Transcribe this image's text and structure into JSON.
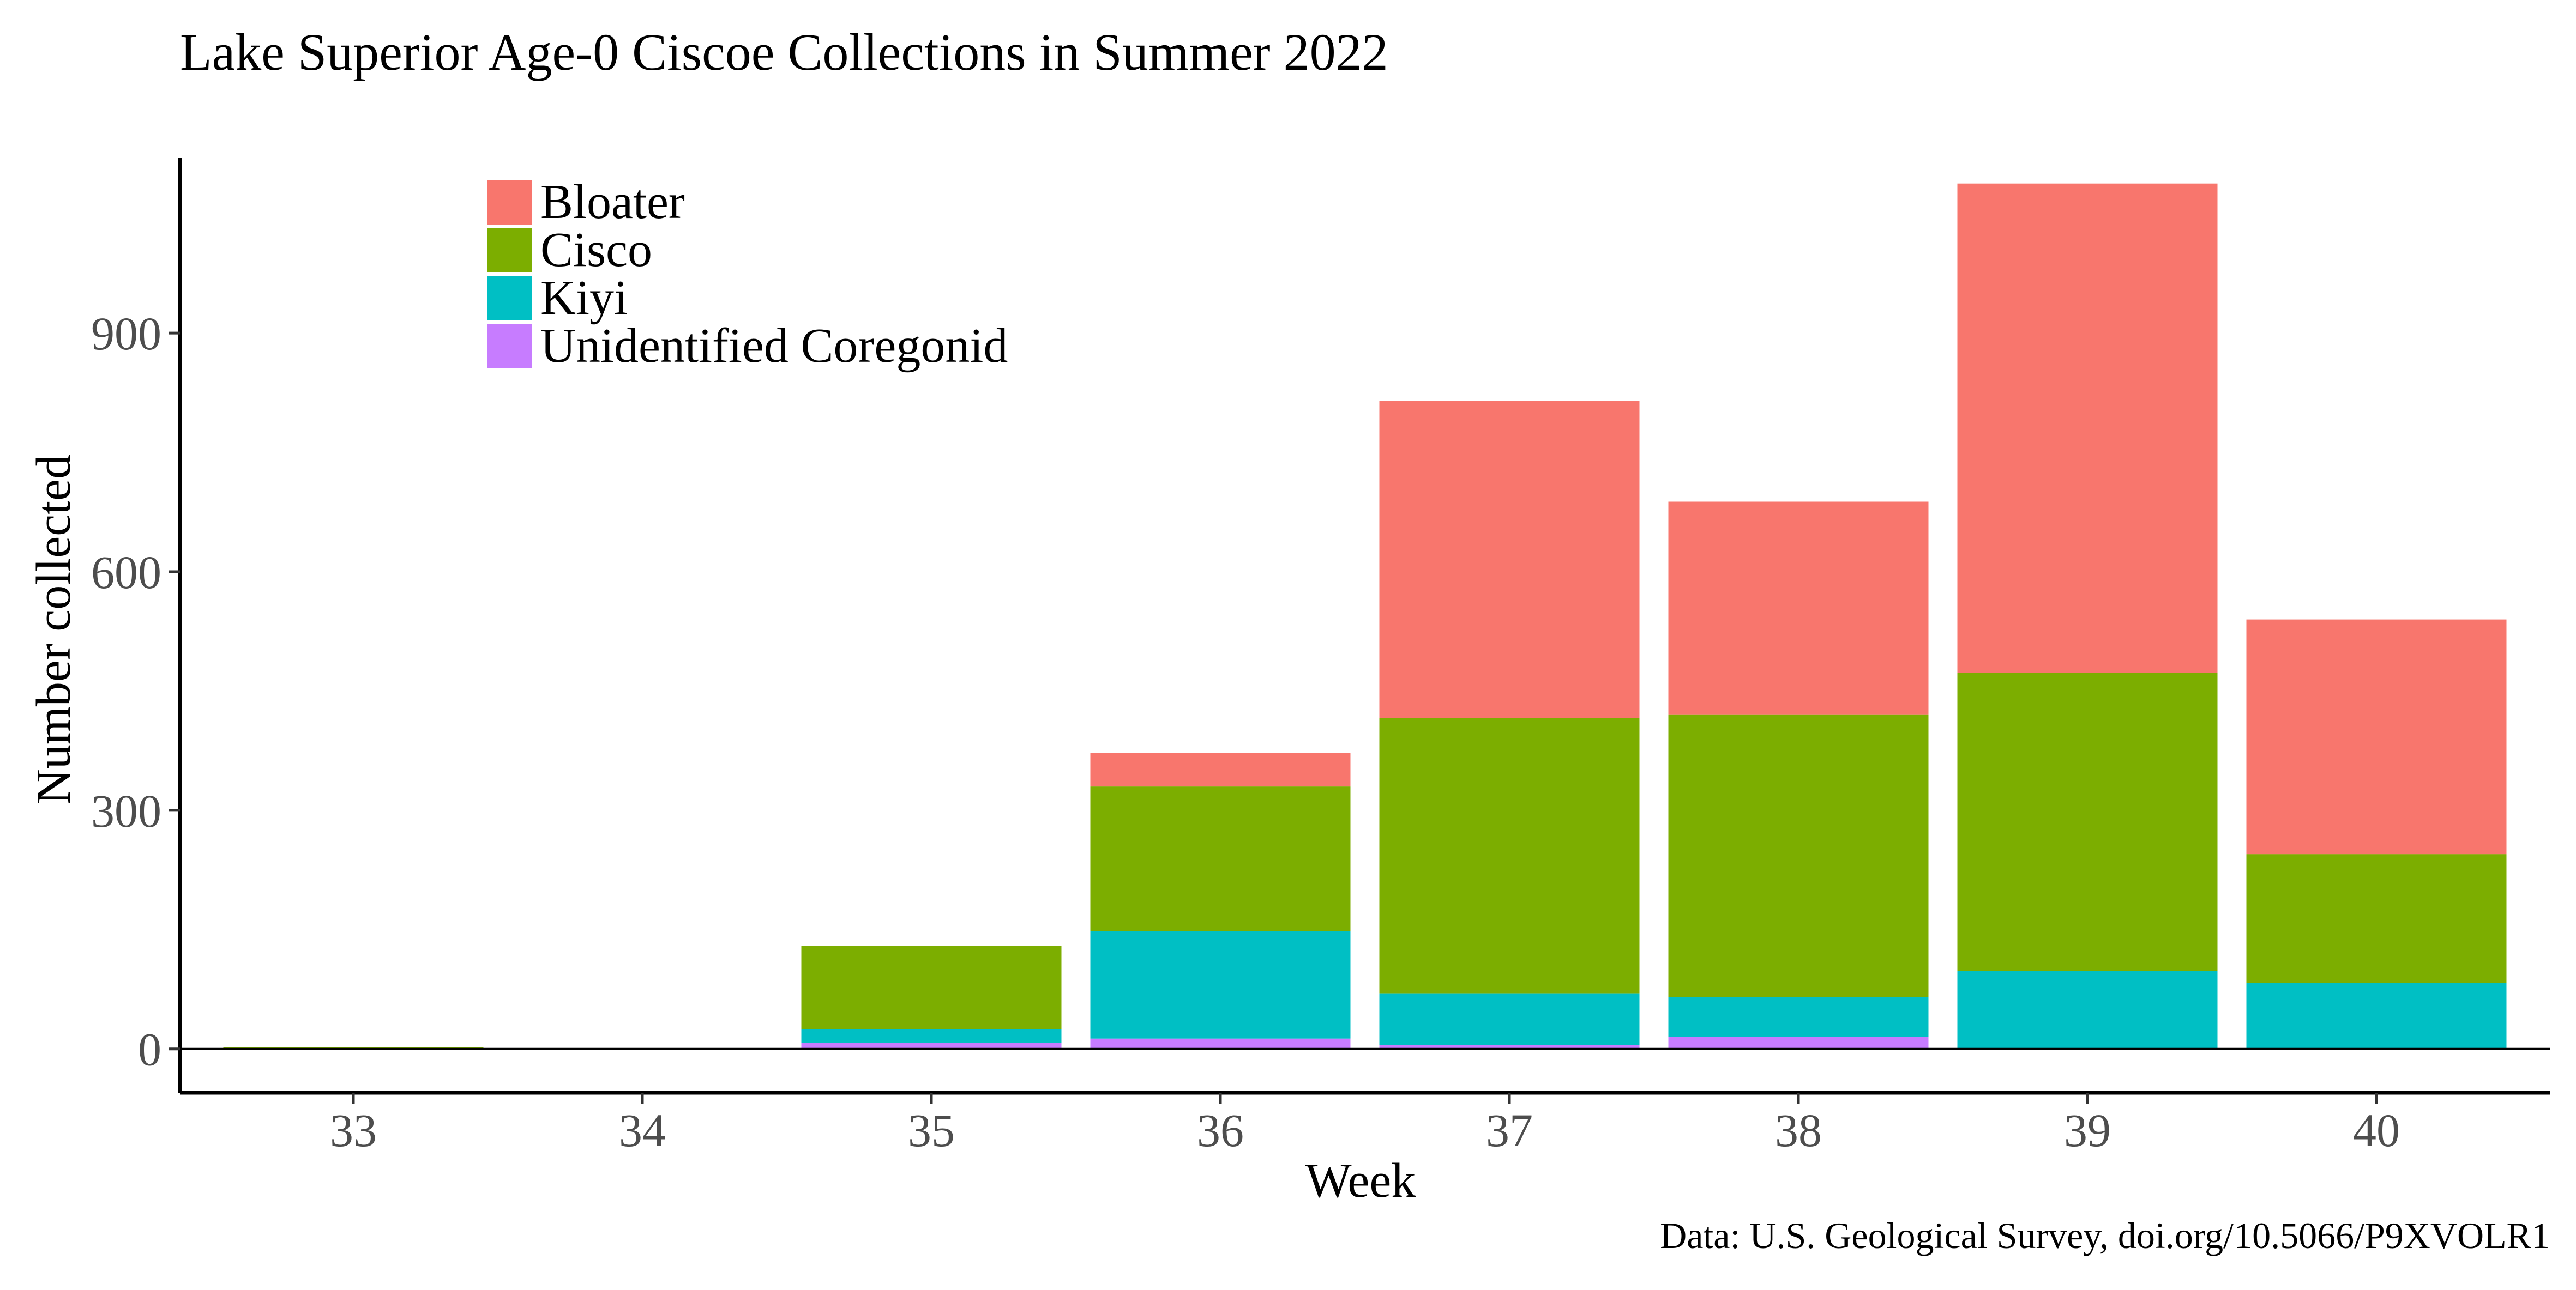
{
  "chart_data": {
    "type": "bar",
    "stacked": true,
    "title": "Lake Superior Age-0 Ciscoe Collections in Summer 2022",
    "xlabel": "Week",
    "ylabel": "Number collected",
    "caption": "Data: U.S. Geological Survey, doi.org/10.5066/P9XVOLR1",
    "categories": [
      "33",
      "34",
      "35",
      "36",
      "37",
      "38",
      "39",
      "40"
    ],
    "ylim": [
      -55,
      1120
    ],
    "yticks": [
      0,
      300,
      600,
      900
    ],
    "ytick_labels": [
      "0",
      "300",
      "600",
      "900"
    ],
    "reference_line_y": 0,
    "grid": false,
    "legend_position": "top-left inside plot",
    "series": [
      {
        "name": "Unidentified Coregonid",
        "color": "#C77CFF",
        "values": [
          0,
          0,
          8,
          13,
          5,
          15,
          0,
          0
        ]
      },
      {
        "name": "Kiyi",
        "color": "#00BFC4",
        "values": [
          0,
          0,
          17,
          135,
          65,
          50,
          98,
          83
        ]
      },
      {
        "name": "Cisco",
        "color": "#7CAE00",
        "values": [
          2,
          0,
          105,
          182,
          346,
          355,
          375,
          162
        ]
      },
      {
        "name": "Bloater",
        "color": "#F8766D",
        "values": [
          0,
          0,
          0,
          42,
          399,
          268,
          615,
          295
        ]
      }
    ],
    "legend_order": [
      "Bloater",
      "Cisco",
      "Kiyi",
      "Unidentified Coregonid"
    ]
  }
}
